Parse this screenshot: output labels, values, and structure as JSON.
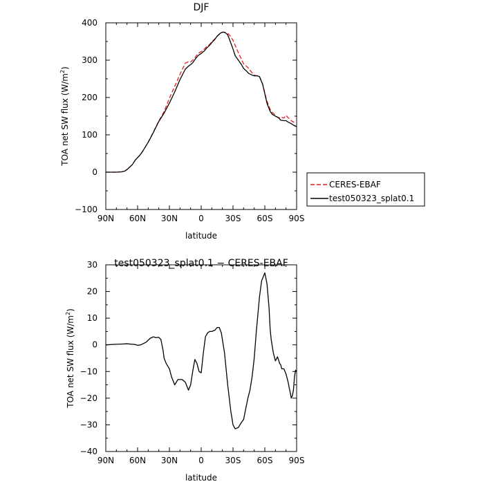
{
  "chart_data": [
    {
      "type": "line",
      "title": "DJF",
      "xlabel": "latitude",
      "ylabel_main": "TOA net SW flux (W/m",
      "ylabel_sup": "2",
      "ylabel_close": ")",
      "xlim": [
        90,
        -90
      ],
      "ylim": [
        -100,
        400
      ],
      "x_ticks": [
        90,
        60,
        30,
        0,
        -30,
        -60,
        -90
      ],
      "x_tick_labels": [
        "90N",
        "60N",
        "30N",
        "0",
        "30S",
        "60S",
        "90S"
      ],
      "y_ticks": [
        -100,
        0,
        100,
        200,
        300,
        400
      ],
      "y_tick_labels": [
        "−100",
        "0",
        "100",
        "200",
        "300",
        "400"
      ],
      "legend_position": "right",
      "series": [
        {
          "name": "CERES-EBAF",
          "color": "#e41a1c",
          "dash": true,
          "x": [
            90,
            80,
            75,
            72,
            70,
            68,
            65,
            62,
            58,
            55,
            50,
            45,
            40,
            35,
            30,
            25,
            20,
            15,
            12,
            10,
            8,
            5,
            3,
            0,
            -3,
            -5,
            -8,
            -10,
            -13,
            -15,
            -18,
            -20,
            -22,
            -25,
            -27,
            -30,
            -32,
            -35,
            -38,
            -40,
            -43,
            -45,
            -48,
            -50,
            -53,
            -55,
            -58,
            -60,
            -62,
            -65,
            -67,
            -70,
            -73,
            -75,
            -78,
            -80,
            -82,
            -85,
            -87,
            -90
          ],
          "y": [
            0,
            0,
            1,
            3,
            7,
            12,
            20,
            33,
            45,
            57,
            80,
            108,
            137,
            162,
            198,
            230,
            262,
            292,
            296,
            295,
            300,
            310,
            318,
            323,
            330,
            336,
            342,
            349,
            357,
            364,
            372,
            375,
            374,
            372,
            366,
            353,
            340,
            320,
            302,
            290,
            283,
            277,
            266,
            260,
            258,
            256,
            236,
            212,
            190,
            168,
            160,
            152,
            145,
            148,
            145,
            152,
            146,
            138,
            134,
            136
          ]
        },
        {
          "name": "test050323_splat0.1",
          "color": "#000000",
          "dash": false,
          "x": [
            90,
            80,
            75,
            72,
            70,
            68,
            65,
            62,
            58,
            55,
            50,
            45,
            40,
            35,
            30,
            25,
            20,
            15,
            12,
            10,
            8,
            5,
            3,
            0,
            -3,
            -5,
            -8,
            -10,
            -13,
            -15,
            -18,
            -20,
            -22,
            -25,
            -27,
            -30,
            -32,
            -35,
            -38,
            -40,
            -43,
            -45,
            -48,
            -50,
            -53,
            -55,
            -58,
            -60,
            -62,
            -65,
            -67,
            -70,
            -73,
            -75,
            -78,
            -80,
            -82,
            -85,
            -87,
            -90
          ],
          "y": [
            0,
            0,
            1,
            3,
            7,
            12,
            20,
            33,
            45,
            57,
            80,
            107,
            136,
            158,
            185,
            215,
            248,
            276,
            284,
            288,
            293,
            305,
            312,
            318,
            325,
            332,
            340,
            347,
            356,
            364,
            372,
            375,
            375,
            368,
            353,
            330,
            312,
            300,
            288,
            278,
            270,
            264,
            260,
            258,
            258,
            256,
            235,
            210,
            185,
            163,
            155,
            150,
            146,
            139,
            138,
            138,
            134,
            130,
            126,
            122
          ]
        }
      ]
    },
    {
      "type": "line",
      "title": "test050323_splat0.1 − CERES-EBAF",
      "xlabel": "latitude",
      "ylabel_main": "TOA net SW flux (W/m",
      "ylabel_sup": "2",
      "ylabel_close": ")",
      "xlim": [
        90,
        -90
      ],
      "ylim": [
        -40,
        30
      ],
      "x_ticks": [
        90,
        60,
        30,
        0,
        -30,
        -60,
        -90
      ],
      "x_tick_labels": [
        "90N",
        "60N",
        "30N",
        "0",
        "30S",
        "60S",
        "90S"
      ],
      "y_ticks": [
        -40,
        -30,
        -20,
        -10,
        0,
        10,
        20,
        30
      ],
      "y_tick_labels": [
        "−40",
        "−30",
        "−20",
        "−10",
        "0",
        "10",
        "20",
        "30"
      ],
      "series": [
        {
          "color": "#000000",
          "dash": false,
          "x": [
            90,
            80,
            75,
            70,
            65,
            62,
            60,
            57,
            55,
            52,
            48,
            45,
            43,
            40,
            38,
            36,
            35,
            33,
            30,
            28,
            25,
            22,
            18,
            15,
            12,
            10,
            8,
            6,
            4,
            2,
            0,
            -2,
            -4,
            -6,
            -8,
            -10,
            -13,
            -15,
            -17,
            -19,
            -22,
            -25,
            -28,
            -30,
            -32,
            -35,
            -38,
            -40,
            -42,
            -44,
            -46,
            -48,
            -50,
            -52,
            -55,
            -57,
            -60,
            -62,
            -64,
            -65,
            -66,
            -68,
            -70,
            -72,
            -74,
            -75,
            -76,
            -78,
            -80,
            -82,
            -84,
            -85,
            -86,
            -87,
            -88,
            -89,
            -90
          ],
          "y": [
            0,
            0.2,
            0.3,
            0.4,
            0.2,
            0.1,
            -0.2,
            0,
            0.4,
            1,
            2.5,
            3,
            2.7,
            2.8,
            2,
            -2,
            -5,
            -7,
            -9,
            -12,
            -15,
            -13,
            -13,
            -14,
            -17,
            -15,
            -10,
            -5.5,
            -7,
            -10,
            -10.5,
            -3,
            3,
            4.5,
            5,
            5,
            5.5,
            6.5,
            6.5,
            4.5,
            -3,
            -15,
            -25,
            -30,
            -31.5,
            -31,
            -29,
            -28,
            -24,
            -20,
            -17,
            -12,
            -5,
            5,
            18,
            24,
            27,
            23,
            14,
            6,
            2,
            -3,
            -6,
            -4.5,
            -7,
            -7.5,
            -9,
            -9,
            -11,
            -14,
            -18,
            -20,
            -19,
            -17,
            -12,
            -9.5,
            -10
          ]
        }
      ]
    }
  ]
}
